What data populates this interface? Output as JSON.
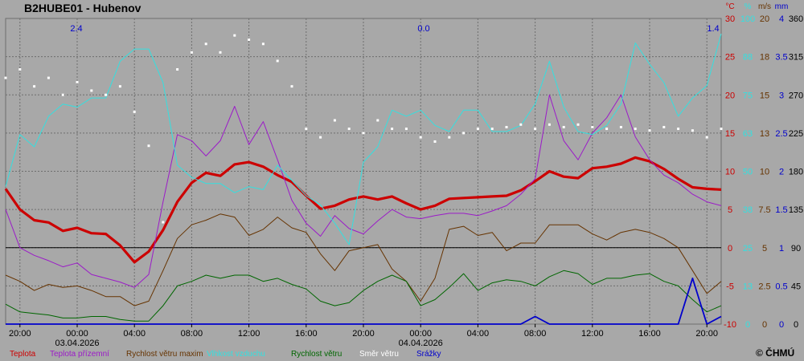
{
  "header": {
    "station": "B2HUBE01 - Hubenov"
  },
  "copyright": "© ČHMÚ",
  "colors": {
    "background": "#a8a8a8",
    "grid": "#6e6e6e",
    "temperature": "#cc0000",
    "ground_temperature": "#9b1bc8",
    "wind_gust": "#663300",
    "humidity": "#33e0e0",
    "wind_speed": "#006600",
    "wind_direction": "#ffffff",
    "precipitation": "#0000cc"
  },
  "chart_data": {
    "type": "line",
    "title": "B2HUBE01 - Hubenov",
    "x_range_hours": [
      -5,
      20.8
    ],
    "x_ticks": [
      {
        "h": -4,
        "label": "20:00",
        "date": ""
      },
      {
        "h": 0,
        "label": "00:00",
        "date": "03.04.2026"
      },
      {
        "h": 4,
        "label": "04:00",
        "date": ""
      },
      {
        "h": 8,
        "label": "08:00",
        "date": ""
      },
      {
        "h": 12,
        "label": "12:00",
        "date": ""
      },
      {
        "h": 16,
        "label": "16:00",
        "date": ""
      },
      {
        "h": -4,
        "label": "20:00",
        "date": ""
      },
      {
        "h": 0,
        "label": "00:00",
        "date": "04.04.2026"
      },
      {
        "h": 4,
        "label": "04:00",
        "date": ""
      },
      {
        "h": 8,
        "label": "08:00",
        "date": ""
      },
      {
        "h": 12,
        "label": "12:00",
        "date": ""
      },
      {
        "h": 16,
        "label": "16:00",
        "date": ""
      },
      {
        "h": 20,
        "label": "20:00",
        "date": ""
      }
    ],
    "axes": [
      {
        "unit": "°C",
        "color": "#cc0000",
        "min": -10,
        "max": 30,
        "ticks": [
          "-10",
          "-5",
          "0",
          "5",
          "10",
          "15",
          "20",
          "25",
          "30"
        ]
      },
      {
        "unit": "%",
        "color": "#33e0e0",
        "min": 0,
        "max": 100,
        "ticks": [
          "0",
          "13",
          "25",
          "38",
          "50",
          "63",
          "75",
          "88",
          "100"
        ]
      },
      {
        "unit": "m/s",
        "color": "#663300",
        "min": 0,
        "max": 20,
        "ticks": [
          "0",
          "2.5",
          "5",
          "7.5",
          "10",
          "13",
          "15",
          "18",
          "20"
        ]
      },
      {
        "unit": "mm",
        "color": "#0000cc",
        "min": 0,
        "max": 4,
        "ticks": [
          "0",
          "0.5",
          "1",
          "1.5",
          "2",
          "2.5",
          "3",
          "3.5",
          "4"
        ]
      },
      {
        "unit": "",
        "color": "#000000",
        "min": 0,
        "max": 360,
        "ticks": [
          "0",
          "45",
          "90",
          "135",
          "180",
          "225",
          "270",
          "315",
          "360"
        ]
      }
    ],
    "precip_sums": [
      {
        "day": 1,
        "value": "2.4"
      },
      {
        "day": 2,
        "value": "0.0"
      },
      {
        "day": 3,
        "value": "1.4"
      }
    ],
    "x": [
      -5,
      -4,
      -3,
      -2,
      -1,
      0,
      1,
      2,
      3,
      4,
      5,
      6,
      7,
      8,
      9,
      10,
      11,
      12,
      13,
      14,
      15,
      16,
      17,
      18,
      19,
      -4,
      -3,
      -2,
      -1,
      0,
      1,
      2,
      3,
      4,
      5,
      6,
      7,
      8,
      9,
      10,
      11,
      12,
      13,
      14,
      15,
      16,
      17,
      18,
      19,
      20,
      20.5
    ],
    "series": [
      {
        "name": "Teplota",
        "axis": 0,
        "color": "#cc0000",
        "width": 3.2,
        "values": [
          7.7,
          5.0,
          3.6,
          3.3,
          2.2,
          2.6,
          1.9,
          1.8,
          0.3,
          -1.9,
          -0.5,
          2.3,
          6.0,
          8.5,
          9.8,
          9.4,
          10.9,
          11.2,
          10.6,
          9.5,
          8.6,
          6.8,
          5.1,
          5.5,
          6.3,
          6.7,
          6.3,
          6.7,
          5.8,
          5.0,
          5.5,
          6.4,
          6.5,
          6.6,
          6.7,
          6.8,
          7.5,
          8.7,
          10.0,
          9.3,
          9.1,
          10.4,
          10.6,
          11.0,
          11.8,
          11.3,
          10.3,
          9.0,
          7.9,
          7.7,
          7.6
        ]
      },
      {
        "name": "Teplota přízemní",
        "axis": 0,
        "color": "#9b1bc8",
        "width": 1,
        "values": [
          5.0,
          0.0,
          -1.0,
          -1.7,
          -2.5,
          -2.0,
          -3.5,
          -4.0,
          -4.5,
          -5.2,
          -3.5,
          6.0,
          14.8,
          14.0,
          12.0,
          14.0,
          18.5,
          13.5,
          16.5,
          11.5,
          6.2,
          3.2,
          1.5,
          4.2,
          2.5,
          1.8,
          3.5,
          5.0,
          4.0,
          3.8,
          4.2,
          4.5,
          4.5,
          4.2,
          4.8,
          5.5,
          7.0,
          9.0,
          20.0,
          14.0,
          11.5,
          15.0,
          17.0,
          20.0,
          14.5,
          11.5,
          9.5,
          8.5,
          7.0,
          6.0,
          5.5
        ]
      },
      {
        "name": "Rychlost větru maxim",
        "axis": 2,
        "color": "#663300",
        "width": 1,
        "values": [
          3.2,
          2.8,
          2.2,
          2.6,
          2.4,
          2.5,
          2.2,
          1.8,
          1.8,
          1.2,
          1.5,
          3.5,
          5.6,
          6.5,
          6.8,
          7.2,
          7.0,
          5.8,
          6.2,
          7.0,
          6.3,
          6.0,
          4.6,
          3.5,
          4.8,
          5.0,
          5.2,
          3.6,
          2.8,
          1.5,
          3.0,
          6.2,
          6.4,
          5.8,
          6.0,
          4.8,
          5.3,
          5.3,
          6.5,
          6.5,
          6.5,
          5.9,
          5.5,
          6.0,
          6.2,
          6.0,
          5.6,
          5.0,
          3.5,
          2.0,
          2.8
        ]
      },
      {
        "name": "Vlhkost vzduchu",
        "axis": 1,
        "color": "#33e0e0",
        "width": 1,
        "values": [
          45,
          62,
          58,
          68,
          72,
          71,
          74,
          74,
          86,
          90,
          90,
          79,
          52,
          48,
          46,
          46,
          43,
          45,
          44,
          52,
          47,
          42,
          39,
          33,
          26,
          53,
          58,
          70,
          68,
          70,
          65,
          63,
          70,
          70,
          63,
          63,
          65,
          72,
          86,
          71,
          63,
          62,
          65,
          72,
          92,
          85,
          79,
          68,
          74,
          78,
          95
        ]
      },
      {
        "name": "Rychlost větru",
        "axis": 2,
        "color": "#006600",
        "width": 1,
        "values": [
          1.3,
          0.8,
          0.7,
          0.6,
          0.4,
          0.4,
          0.5,
          0.5,
          0.3,
          0.2,
          0.2,
          1.2,
          2.5,
          2.8,
          3.2,
          3.0,
          3.2,
          3.2,
          2.8,
          3.0,
          2.6,
          2.3,
          1.5,
          1.2,
          1.4,
          2.2,
          2.8,
          3.2,
          2.8,
          1.2,
          1.6,
          2.4,
          3.3,
          2.2,
          2.7,
          2.9,
          2.8,
          2.5,
          3.1,
          3.5,
          3.3,
          2.6,
          3.0,
          3.0,
          3.2,
          3.3,
          2.8,
          2.5,
          1.6,
          0.8,
          1.2
        ]
      },
      {
        "name": "Směr větru",
        "axis": 4,
        "color": "#ffffff",
        "width": 0,
        "values": [
          290,
          300,
          280,
          290,
          270,
          285,
          275,
          270,
          280,
          250,
          210,
          120,
          300,
          320,
          330,
          320,
          340,
          335,
          330,
          310,
          280,
          230,
          220,
          240,
          230,
          225,
          240,
          230,
          230,
          220,
          215,
          220,
          225,
          230,
          230,
          232,
          235,
          230,
          235,
          232,
          235,
          232,
          230,
          232,
          230,
          228,
          232,
          230,
          228,
          220,
          230
        ]
      },
      {
        "name": "Srážky",
        "axis": 3,
        "color": "#0000cc",
        "width": 1.8,
        "values": [
          0,
          0,
          0,
          0,
          0,
          0,
          0,
          0,
          0,
          0,
          0,
          0,
          0,
          0,
          0,
          0,
          0,
          0,
          0,
          0,
          0,
          0,
          0,
          0,
          0,
          0,
          0,
          0,
          0,
          0,
          0,
          0,
          0,
          0,
          0,
          0,
          0,
          0.1,
          0,
          0,
          0,
          0,
          0,
          0,
          0,
          0,
          0,
          0,
          0.6,
          0,
          0.1
        ]
      }
    ]
  }
}
